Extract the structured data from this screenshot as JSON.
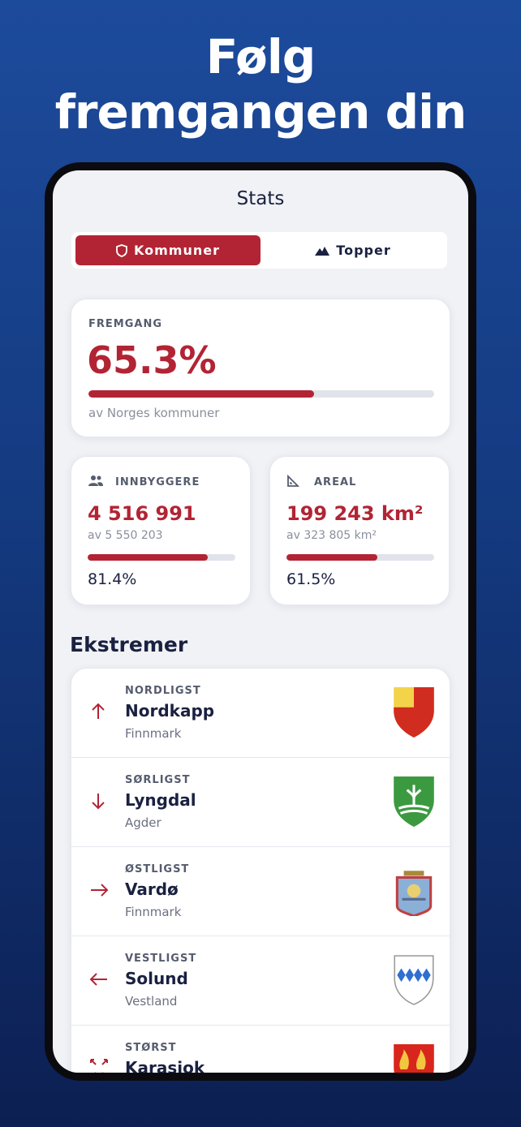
{
  "headline": {
    "line1": "Følg",
    "line2": "fremgangen din"
  },
  "screen_title": "Stats",
  "tabs": [
    "Kommuner",
    "Topper"
  ],
  "progress": {
    "label": "FREMGANG",
    "value": 65.3,
    "value_label": "65.3%",
    "caption": "av Norges kommuner"
  },
  "stats": [
    {
      "label": "INNBYGGERE",
      "amount": "4 516 991",
      "total": "av 5 550 203",
      "percent": 81.4,
      "percent_label": "81.4%"
    },
    {
      "label": "AREAL",
      "amount": "199 243 km²",
      "total": "av 323 805 km²",
      "percent": 61.5,
      "percent_label": "61.5%"
    }
  ],
  "extremes_title": "Ekstremer",
  "extremes": [
    {
      "label": "NORDLIGST",
      "name": "Nordkapp",
      "region": "Finnmark"
    },
    {
      "label": "SØRLIGST",
      "name": "Lyngdal",
      "region": "Agder"
    },
    {
      "label": "ØSTLIGST",
      "name": "Vardø",
      "region": "Finnmark"
    },
    {
      "label": "VESTLIGST",
      "name": "Solund",
      "region": "Vestland"
    },
    {
      "label": "STØRST",
      "name": "Karasjok"
    }
  ]
}
